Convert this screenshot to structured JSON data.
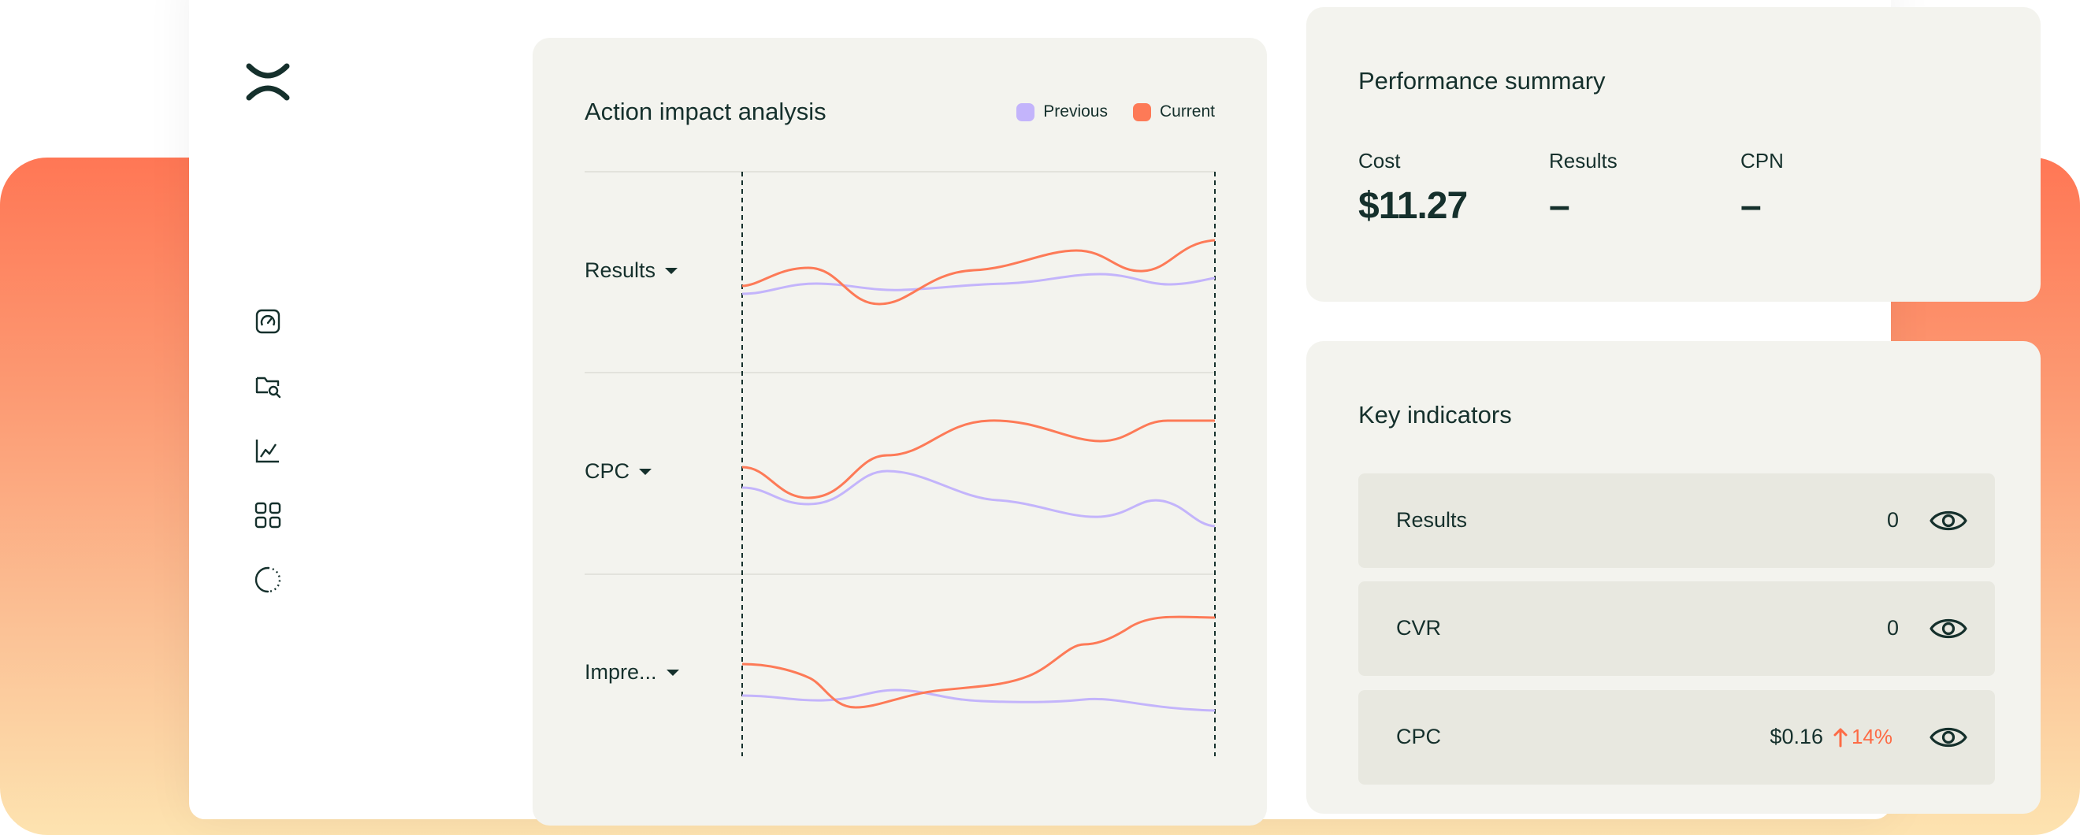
{
  "colors": {
    "previous": "#c3b4fb",
    "current": "#fd7a57",
    "card_bg": "#f3f3ee",
    "row_bg": "#e8e8e0",
    "text": "#15302c"
  },
  "sidebar": {
    "logo": "brand-logo",
    "items": [
      {
        "icon": "gauge-icon"
      },
      {
        "icon": "folder-search-icon"
      },
      {
        "icon": "chart-line-icon"
      },
      {
        "icon": "grid-icon"
      },
      {
        "icon": "loading-circle-icon"
      }
    ]
  },
  "impact": {
    "title": "Action impact analysis",
    "legend": {
      "previous": "Previous",
      "current": "Current"
    },
    "metrics": [
      {
        "label": "Results"
      },
      {
        "label": "CPC"
      },
      {
        "label": "Impre..."
      }
    ]
  },
  "performance": {
    "title": "Performance summary",
    "stats": [
      {
        "label": "Cost",
        "value": "$11.27"
      },
      {
        "label": "Results",
        "value": "–"
      },
      {
        "label": "CPN",
        "value": "–"
      }
    ]
  },
  "indicators": {
    "title": "Key indicators",
    "rows": [
      {
        "label": "Results",
        "value": "0",
        "change": ""
      },
      {
        "label": "CVR",
        "value": "0",
        "change": ""
      },
      {
        "label": "CPC",
        "value": "$0.16",
        "change": "14%"
      }
    ]
  }
}
